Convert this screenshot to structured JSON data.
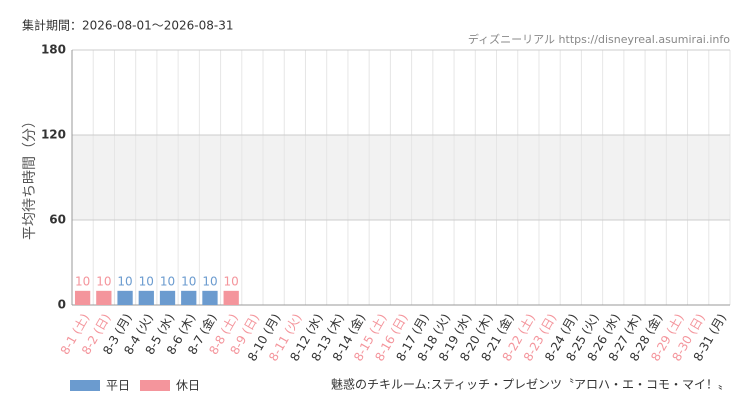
{
  "chart_data": {
    "type": "bar",
    "period": "集計期間：2026-08-01～2026-08-31",
    "source": "ディズニーリアル https://disneyreal.asumirai.info",
    "ylabel": "平均待ち時間（分）",
    "attraction": "魅惑のチキルーム:スティッチ・プレゼンツ〝アロハ・エ・コモ・マイ！〟",
    "categories": [
      "8-1 (土)",
      "8-2 (日)",
      "8-3 (月)",
      "8-4 (火)",
      "8-5 (水)",
      "8-6 (木)",
      "8-7 (金)",
      "8-8 (土)",
      "8-9 (日)",
      "8-10 (月)",
      "8-11 (火)",
      "8-12 (水)",
      "8-13 (木)",
      "8-14 (金)",
      "8-15 (土)",
      "8-16 (日)",
      "8-17 (月)",
      "8-18 (火)",
      "8-19 (水)",
      "8-20 (木)",
      "8-21 (金)",
      "8-22 (土)",
      "8-23 (日)",
      "8-24 (月)",
      "8-25 (火)",
      "8-26 (水)",
      "8-27 (木)",
      "8-28 (金)",
      "8-29 (土)",
      "8-30 (日)",
      "8-31 (月)"
    ],
    "label_colors": [
      "#f4959c",
      "#f4959c",
      "#333333",
      "#333333",
      "#333333",
      "#333333",
      "#333333",
      "#f4959c",
      "#f4959c",
      "#333333",
      "#f4959c",
      "#333333",
      "#333333",
      "#333333",
      "#f4959c",
      "#f4959c",
      "#333333",
      "#333333",
      "#333333",
      "#333333",
      "#333333",
      "#f4959c",
      "#f4959c",
      "#333333",
      "#333333",
      "#333333",
      "#333333",
      "#333333",
      "#f4959c",
      "#f4959c",
      "#333333"
    ],
    "series": [
      {
        "name": "平日",
        "color": "#6b9bcf",
        "values": [
          null,
          null,
          10,
          10,
          10,
          10,
          10,
          null,
          null,
          null,
          null,
          null,
          null,
          null,
          null,
          null,
          null,
          null,
          null,
          null,
          null,
          null,
          null,
          null,
          null,
          null,
          null,
          null,
          null,
          null,
          null
        ]
      },
      {
        "name": "休日",
        "color": "#f4959c",
        "values": [
          10,
          10,
          null,
          null,
          null,
          null,
          null,
          10,
          null,
          null,
          null,
          null,
          null,
          null,
          null,
          null,
          null,
          null,
          null,
          null,
          null,
          null,
          null,
          null,
          null,
          null,
          null,
          null,
          null,
          null,
          null
        ]
      }
    ],
    "ylim": [
      0,
      180
    ],
    "yticks": [
      0,
      60,
      120,
      180
    ],
    "grid": true
  }
}
